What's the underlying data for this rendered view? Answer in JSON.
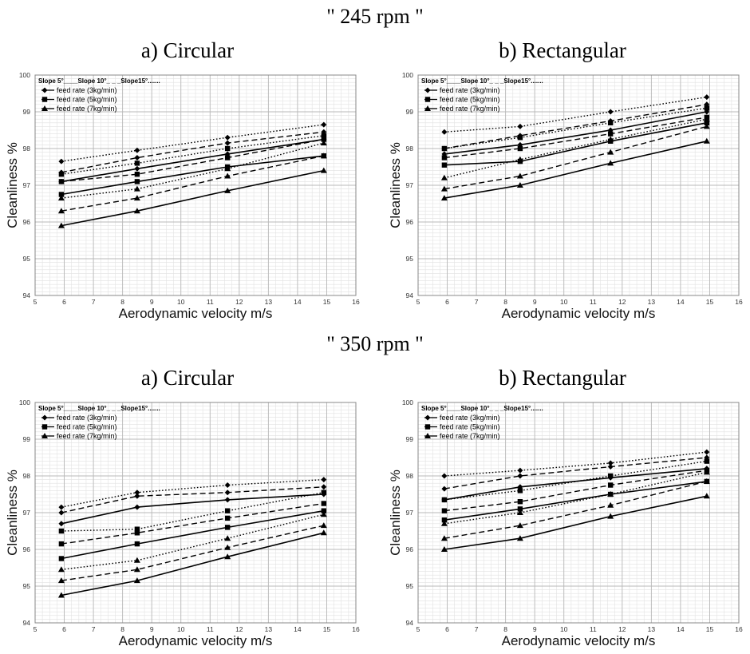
{
  "figure": {
    "top_title": "\" 245 rpm \"",
    "middle_title": "\" 350 rpm \""
  },
  "chart_data": [
    {
      "type": "line",
      "title": "a) Circular",
      "group": "\" 245 rpm \"",
      "xlabel": "Aerodynamic velocity  m/s",
      "ylabel": "Cleanliness %",
      "xlim": [
        5,
        16
      ],
      "ylim": [
        94,
        100
      ],
      "xticks": [
        5,
        6,
        7,
        8,
        9,
        10,
        11,
        12,
        13,
        14,
        15,
        16
      ],
      "yticks": [
        94,
        95,
        96,
        97,
        98,
        99,
        100
      ],
      "grid": true,
      "legend": {
        "position": "top-left",
        "header": "Slope 5°____Slope 10°_ _ _Slope15°.......",
        "entries": [
          {
            "label": "feed rate (3kg/min)",
            "marker": "diamond"
          },
          {
            "label": "feed rate (5kg/min)",
            "marker": "square"
          },
          {
            "label": "feed rate (7kg/min)",
            "marker": "triangle"
          }
        ]
      },
      "x": [
        5.9,
        8.5,
        11.6,
        14.9
      ],
      "series": [
        {
          "feed": "3kg/min",
          "slope": "5°",
          "values": [
            97.1,
            97.45,
            97.85,
            98.25
          ]
        },
        {
          "feed": "3kg/min",
          "slope": "10°",
          "values": [
            97.35,
            97.75,
            98.15,
            98.45
          ]
        },
        {
          "feed": "3kg/min",
          "slope": "15°",
          "values": [
            97.65,
            97.95,
            98.3,
            98.65
          ]
        },
        {
          "feed": "5kg/min",
          "slope": "5°",
          "values": [
            96.75,
            97.1,
            97.5,
            97.8
          ]
        },
        {
          "feed": "5kg/min",
          "slope": "10°",
          "values": [
            97.1,
            97.3,
            97.75,
            98.25
          ]
        },
        {
          "feed": "5kg/min",
          "slope": "15°",
          "values": [
            97.3,
            97.6,
            98.0,
            98.35
          ]
        },
        {
          "feed": "7kg/min",
          "slope": "5°",
          "values": [
            95.9,
            96.3,
            96.85,
            97.4
          ]
        },
        {
          "feed": "7kg/min",
          "slope": "10°",
          "values": [
            96.3,
            96.65,
            97.25,
            97.8
          ]
        },
        {
          "feed": "7kg/min",
          "slope": "15°",
          "values": [
            96.65,
            96.9,
            97.45,
            98.15
          ]
        }
      ]
    },
    {
      "type": "line",
      "title": "b) Rectangular",
      "group": "\" 245 rpm \"",
      "xlabel": "Aerodynamic velocity  m/s",
      "ylabel": "Cleanliness %",
      "xlim": [
        5,
        16
      ],
      "ylim": [
        94,
        100
      ],
      "xticks": [
        5,
        6,
        7,
        8,
        9,
        10,
        11,
        12,
        13,
        14,
        15,
        16
      ],
      "yticks": [
        94,
        95,
        96,
        97,
        98,
        99,
        100
      ],
      "grid": true,
      "legend": {
        "position": "top-left",
        "header": "Slope 5°____Slope 10°_ _ _Slope15°.......",
        "entries": [
          {
            "label": "feed rate (3kg/min)",
            "marker": "diamond"
          },
          {
            "label": "feed rate (5kg/min)",
            "marker": "square"
          },
          {
            "label": "feed rate (7kg/min)",
            "marker": "triangle"
          }
        ]
      },
      "x": [
        5.9,
        8.5,
        11.6,
        14.9
      ],
      "series": [
        {
          "feed": "3kg/min",
          "slope": "5°",
          "values": [
            97.85,
            98.1,
            98.5,
            99.0
          ]
        },
        {
          "feed": "3kg/min",
          "slope": "10°",
          "values": [
            98.0,
            98.35,
            98.75,
            99.2
          ]
        },
        {
          "feed": "3kg/min",
          "slope": "15°",
          "values": [
            98.45,
            98.6,
            99.0,
            99.4
          ]
        },
        {
          "feed": "5kg/min",
          "slope": "5°",
          "values": [
            97.55,
            97.65,
            98.2,
            98.7
          ]
        },
        {
          "feed": "5kg/min",
          "slope": "10°",
          "values": [
            97.75,
            98.0,
            98.4,
            98.85
          ]
        },
        {
          "feed": "5kg/min",
          "slope": "15°",
          "values": [
            98.0,
            98.3,
            98.7,
            99.1
          ]
        },
        {
          "feed": "7kg/min",
          "slope": "5°",
          "values": [
            96.65,
            97.0,
            97.6,
            98.2
          ]
        },
        {
          "feed": "7kg/min",
          "slope": "10°",
          "values": [
            96.9,
            97.25,
            97.9,
            98.6
          ]
        },
        {
          "feed": "7kg/min",
          "slope": "15°",
          "values": [
            97.2,
            97.7,
            98.25,
            98.8
          ]
        }
      ]
    },
    {
      "type": "line",
      "title": "a) Circular",
      "group": "\" 350 rpm \"",
      "xlabel": "Aerodynamic velocity  m/s",
      "ylabel": "Cleanliness %",
      "xlim": [
        5,
        16
      ],
      "ylim": [
        94,
        100
      ],
      "xticks": [
        5,
        6,
        7,
        8,
        9,
        10,
        11,
        12,
        13,
        14,
        15,
        16
      ],
      "yticks": [
        94,
        95,
        96,
        97,
        98,
        99,
        100
      ],
      "grid": true,
      "legend": {
        "position": "top-left",
        "header": "Slope 5°____Slope 10°_ _ _Slope15°.......",
        "entries": [
          {
            "label": "feed rate (3kg/min)",
            "marker": "diamond"
          },
          {
            "label": "feed rate (5kg/min)",
            "marker": "square"
          },
          {
            "label": "feed rate (7kg/min)",
            "marker": "triangle"
          }
        ]
      },
      "x": [
        5.9,
        8.5,
        11.6,
        14.9
      ],
      "series": [
        {
          "feed": "3kg/min",
          "slope": "5°",
          "values": [
            96.7,
            97.15,
            97.35,
            97.5
          ]
        },
        {
          "feed": "3kg/min",
          "slope": "10°",
          "values": [
            97.0,
            97.45,
            97.55,
            97.7
          ]
        },
        {
          "feed": "3kg/min",
          "slope": "15°",
          "values": [
            97.15,
            97.55,
            97.75,
            97.9
          ]
        },
        {
          "feed": "5kg/min",
          "slope": "5°",
          "values": [
            95.75,
            96.15,
            96.6,
            97.05
          ]
        },
        {
          "feed": "5kg/min",
          "slope": "10°",
          "values": [
            96.15,
            96.45,
            96.85,
            97.25
          ]
        },
        {
          "feed": "5kg/min",
          "slope": "15°",
          "values": [
            96.5,
            96.55,
            97.05,
            97.55
          ]
        },
        {
          "feed": "7kg/min",
          "slope": "5°",
          "values": [
            94.75,
            95.15,
            95.8,
            96.45
          ]
        },
        {
          "feed": "7kg/min",
          "slope": "10°",
          "values": [
            95.15,
            95.45,
            96.05,
            96.65
          ]
        },
        {
          "feed": "7kg/min",
          "slope": "15°",
          "values": [
            95.45,
            95.7,
            96.3,
            96.95
          ]
        }
      ]
    },
    {
      "type": "line",
      "title": "b) Rectangular",
      "group": "\" 350 rpm \"",
      "xlabel": "Aerodynamic velocity  m/s",
      "ylabel": "Cleanliness %",
      "xlim": [
        5,
        16
      ],
      "ylim": [
        94,
        100
      ],
      "xticks": [
        5,
        6,
        7,
        8,
        9,
        10,
        11,
        12,
        13,
        14,
        15,
        16
      ],
      "yticks": [
        94,
        95,
        96,
        97,
        98,
        99,
        100
      ],
      "grid": true,
      "legend": {
        "position": "top-left",
        "header": "Slope 5°____Slope 10°_ _ _Slope15°.......",
        "entries": [
          {
            "label": "feed rate (3kg/min)",
            "marker": "diamond"
          },
          {
            "label": "feed rate (5kg/min)",
            "marker": "square"
          },
          {
            "label": "feed rate (7kg/min)",
            "marker": "triangle"
          }
        ]
      },
      "x": [
        5.9,
        8.5,
        11.6,
        14.9
      ],
      "series": [
        {
          "feed": "3kg/min",
          "slope": "5°",
          "values": [
            97.35,
            97.7,
            97.95,
            98.2
          ]
        },
        {
          "feed": "3kg/min",
          "slope": "10°",
          "values": [
            97.65,
            98.0,
            98.25,
            98.5
          ]
        },
        {
          "feed": "3kg/min",
          "slope": "15°",
          "values": [
            98.0,
            98.15,
            98.35,
            98.65
          ]
        },
        {
          "feed": "5kg/min",
          "slope": "5°",
          "values": [
            96.8,
            97.1,
            97.5,
            97.85
          ]
        },
        {
          "feed": "5kg/min",
          "slope": "10°",
          "values": [
            97.05,
            97.3,
            97.75,
            98.15
          ]
        },
        {
          "feed": "5kg/min",
          "slope": "15°",
          "values": [
            97.35,
            97.6,
            98.0,
            98.4
          ]
        },
        {
          "feed": "7kg/min",
          "slope": "5°",
          "values": [
            96.0,
            96.3,
            96.9,
            97.45
          ]
        },
        {
          "feed": "7kg/min",
          "slope": "10°",
          "values": [
            96.3,
            96.65,
            97.2,
            97.85
          ]
        },
        {
          "feed": "7kg/min",
          "slope": "15°",
          "values": [
            96.7,
            97.0,
            97.5,
            98.1
          ]
        }
      ]
    }
  ]
}
